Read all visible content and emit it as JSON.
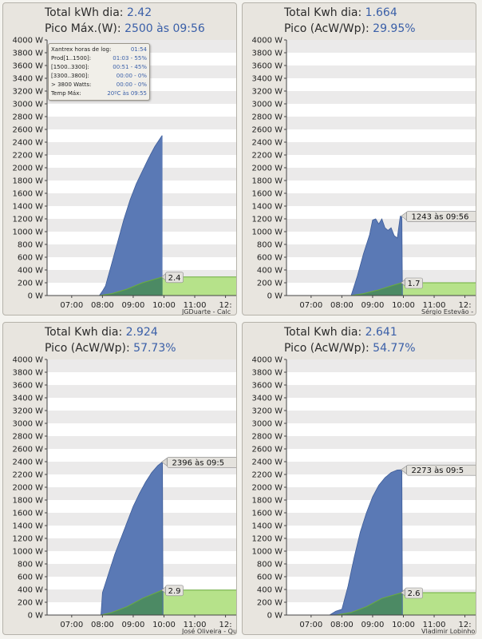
{
  "colors": {
    "power_fill": "#5a79b5",
    "energy_fill": "#b6e28a",
    "overlap_fill": "#4c8a64",
    "stripe": "#ebeaea",
    "bg": "#ffffff"
  },
  "panels": [
    {
      "header": {
        "label1": "Total kWh dia:",
        "value1": "2.42",
        "label2": "Pico Máx.(W):",
        "value2": "2500 às 09:56"
      },
      "info_box": {
        "rows": [
          {
            "label": "Xantrex horas de log:",
            "value": "01:54"
          },
          {
            "label": "Prod[1..1500]:",
            "value": "01:03 - 55%"
          },
          {
            "label": "[1500..3300]:",
            "value": "00:51 - 45%"
          },
          {
            "label": "[3300..3800]:",
            "value": "00:00 - 0%"
          },
          {
            "label": "> 3800 Watts:",
            "value": "00:00 - 0%"
          },
          {
            "label": "Temp Máx:",
            "value": "20ºC às 09:55"
          }
        ]
      },
      "credit": "JGDuarte  -  Calc",
      "peak_callout": "",
      "energy_callout": "2.4"
    },
    {
      "header": {
        "label1": "Total Kwh dia:",
        "value1": "1.664",
        "label2": "Pico (AcW/Wp):",
        "value2": "29.95%"
      },
      "credit": "Sérgio Estevão  -",
      "peak_callout": "1243 às 09:56",
      "energy_callout": "1.7"
    },
    {
      "header": {
        "label1": "Total Kwh dia:",
        "value1": "2.924",
        "label2": "Pico (AcW/Wp):",
        "value2": "57.73%"
      },
      "credit": "José Oliveira - Qu",
      "peak_callout": "2396 às 09:5",
      "energy_callout": "2.9"
    },
    {
      "header": {
        "label1": "Total Kwh dia:",
        "value1": "2.641",
        "label2": "Pico (AcW/Wp):",
        "value2": "54.77%"
      },
      "credit": "Vladimir Lobinho",
      "peak_callout": "2273 às 09:5",
      "energy_callout": "2.6"
    }
  ],
  "chart_data": [
    {
      "type": "area",
      "y_ticks": [
        "0 W",
        "200 W",
        "400 W",
        "600 W",
        "800 W",
        "1000 W",
        "1200 W",
        "1400 W",
        "1600 W",
        "1800 W",
        "2000 W",
        "2200 W",
        "2400 W",
        "2600 W",
        "2800 W",
        "3000 W",
        "3200 W",
        "3400 W",
        "3600 W",
        "3800 W",
        "4000 W"
      ],
      "x_ticks": [
        "07:00",
        "08:00",
        "09:00",
        "10:00",
        "11:00",
        "12:"
      ],
      "ylim": [
        0,
        4000
      ],
      "xlim_hours": [
        6.2,
        12.4
      ],
      "series": [
        {
          "values": {
            "x": [
              7.9,
              8.0,
              8.1,
              8.3,
              8.5,
              8.7,
              8.9,
              9.1,
              9.3,
              9.5,
              9.7,
              9.93,
              9.95
            ],
            "y": [
              0,
              70,
              150,
              500,
              850,
              1200,
              1500,
              1750,
              1950,
              2150,
              2330,
              2500,
              2500
            ]
          }
        },
        {
          "values": {
            "x": [
              6.2,
              7.9,
              8.3,
              8.8,
              9.3,
              9.95,
              12.4
            ],
            "y": [
              0,
              0,
              30,
              100,
              200,
              290,
              290
            ]
          }
        }
      ]
    },
    {
      "type": "area",
      "y_ticks": [
        "0 W",
        "200 W",
        "400 W",
        "600 W",
        "800 W",
        "1000 W",
        "1200 W",
        "1400 W",
        "1600 W",
        "1800 W",
        "2000 W",
        "2200 W",
        "2400 W",
        "2600 W",
        "2800 W",
        "3000 W",
        "3200 W",
        "3400 W",
        "3600 W",
        "3800 W",
        "4000 W"
      ],
      "x_ticks": [
        "07:00",
        "08:00",
        "09:00",
        "10:00",
        "11:00",
        "12:"
      ],
      "ylim": [
        0,
        4000
      ],
      "xlim_hours": [
        6.2,
        12.4
      ],
      "series": [
        {
          "values": {
            "x": [
              8.3,
              8.5,
              8.7,
              8.9,
              9.0,
              9.1,
              9.2,
              9.3,
              9.4,
              9.5,
              9.6,
              9.7,
              9.8,
              9.9,
              9.95,
              9.97
            ],
            "y": [
              0,
              300,
              650,
              950,
              1180,
              1200,
              1120,
              1200,
              1060,
              1020,
              1060,
              940,
              900,
              1243,
              1243,
              0
            ]
          }
        },
        {
          "values": {
            "x": [
              6.2,
              8.3,
              8.7,
              9.2,
              9.6,
              9.95,
              12.4
            ],
            "y": [
              0,
              0,
              30,
              90,
              150,
              200,
              200
            ]
          }
        }
      ]
    },
    {
      "type": "area",
      "y_ticks": [
        "0 W",
        "200 W",
        "400 W",
        "600 W",
        "800 W",
        "1000 W",
        "1200 W",
        "1400 W",
        "1600 W",
        "1800 W",
        "2000 W",
        "2200 W",
        "2400 W",
        "2600 W",
        "2800 W",
        "3000 W",
        "3200 W",
        "3400 W",
        "3600 W",
        "3800 W",
        "4000 W"
      ],
      "x_ticks": [
        "07:00",
        "08:00",
        "09:00",
        "10:00",
        "11:00",
        "12:"
      ],
      "ylim": [
        0,
        4000
      ],
      "xlim_hours": [
        6.2,
        12.4
      ],
      "series": [
        {
          "values": {
            "x": [
              7.95,
              8.0,
              8.2,
              8.4,
              8.6,
              8.8,
              9.0,
              9.2,
              9.4,
              9.6,
              9.8,
              9.95,
              9.97
            ],
            "y": [
              0,
              350,
              650,
              950,
              1200,
              1450,
              1700,
              1900,
              2080,
              2230,
              2340,
              2396,
              0
            ]
          }
        },
        {
          "values": {
            "x": [
              6.2,
              7.95,
              8.3,
              8.8,
              9.3,
              9.95,
              12.4
            ],
            "y": [
              0,
              0,
              40,
              130,
              260,
              390,
              390
            ]
          }
        }
      ]
    },
    {
      "type": "area",
      "y_ticks": [
        "0 W",
        "200 W",
        "400 W",
        "600 W",
        "800 W",
        "1000 W",
        "1200 W",
        "1400 W",
        "1600 W",
        "1800 W",
        "2000 W",
        "2200 W",
        "2400 W",
        "2600 W",
        "2800 W",
        "3000 W",
        "3200 W",
        "3400 W",
        "3600 W",
        "3800 W",
        "4000 W"
      ],
      "x_ticks": [
        "07:00",
        "08:00",
        "09:00",
        "10:00",
        "11:00",
        "12:"
      ],
      "ylim": [
        0,
        4000
      ],
      "xlim_hours": [
        6.2,
        12.4
      ],
      "series": [
        {
          "values": {
            "x": [
              7.6,
              7.8,
              8.0,
              8.2,
              8.4,
              8.6,
              8.8,
              9.0,
              9.2,
              9.4,
              9.6,
              9.8,
              9.95,
              9.97
            ],
            "y": [
              0,
              60,
              90,
              450,
              900,
              1300,
              1600,
              1850,
              2030,
              2150,
              2230,
              2270,
              2273,
              0
            ]
          }
        },
        {
          "values": {
            "x": [
              6.2,
              7.8,
              8.3,
              8.8,
              9.3,
              9.95,
              12.4
            ],
            "y": [
              0,
              0,
              40,
              130,
              260,
              350,
              350
            ]
          }
        }
      ]
    }
  ]
}
